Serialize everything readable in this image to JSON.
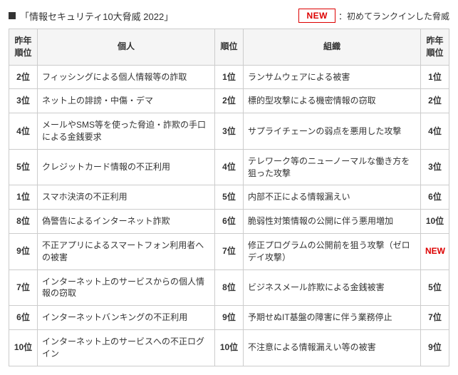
{
  "title": "「情報セキュリティ10大脅威 2022」",
  "legend": {
    "badge": "NEW",
    "text": "：初めてランクインした脅威"
  },
  "headers": {
    "prev_rank": "昨年\n順位",
    "individual": "個人",
    "rank": "順位",
    "organization": "組織",
    "prev_rank_org": "昨年\n順位"
  },
  "rows": [
    {
      "ind_prev": "2位",
      "ind": "フィッシングによる個人情報等の詐取",
      "rank": "1位",
      "org": "ランサムウェアによる被害",
      "org_prev": "1位"
    },
    {
      "ind_prev": "3位",
      "ind": "ネット上の誹謗・中傷・デマ",
      "rank": "2位",
      "org": "標的型攻撃による機密情報の窃取",
      "org_prev": "2位"
    },
    {
      "ind_prev": "4位",
      "ind": "メールやSMS等を使った脅迫・詐欺の手口による金銭要求",
      "rank": "3位",
      "org": "サプライチェーンの弱点を悪用した攻撃",
      "org_prev": "4位"
    },
    {
      "ind_prev": "5位",
      "ind": "クレジットカード情報の不正利用",
      "rank": "4位",
      "org": "テレワーク等のニューノーマルな働き方を狙った攻撃",
      "org_prev": "3位"
    },
    {
      "ind_prev": "1位",
      "ind": "スマホ決済の不正利用",
      "rank": "5位",
      "org": "内部不正による情報漏えい",
      "org_prev": "6位"
    },
    {
      "ind_prev": "8位",
      "ind": "偽警告によるインターネット詐欺",
      "rank": "6位",
      "org": "脆弱性対策情報の公開に伴う悪用増加",
      "org_prev": "10位"
    },
    {
      "ind_prev": "9位",
      "ind": "不正アプリによるスマートフォン利用者への被害",
      "rank": "7位",
      "org": "修正プログラムの公開前を狙う攻撃（ゼロデイ攻撃）",
      "org_prev": "NEW",
      "org_prev_new": true
    },
    {
      "ind_prev": "7位",
      "ind": "インターネット上のサービスからの個人情報の窃取",
      "rank": "8位",
      "org": "ビジネスメール詐欺による金銭被害",
      "org_prev": "5位"
    },
    {
      "ind_prev": "6位",
      "ind": "インターネットバンキングの不正利用",
      "rank": "9位",
      "org": "予期せぬIT基盤の障害に伴う業務停止",
      "org_prev": "7位"
    },
    {
      "ind_prev": "10位",
      "ind": "インターネット上のサービスへの不正ログイン",
      "rank": "10位",
      "org": "不注意による情報漏えい等の被害",
      "org_prev": "9位"
    }
  ]
}
